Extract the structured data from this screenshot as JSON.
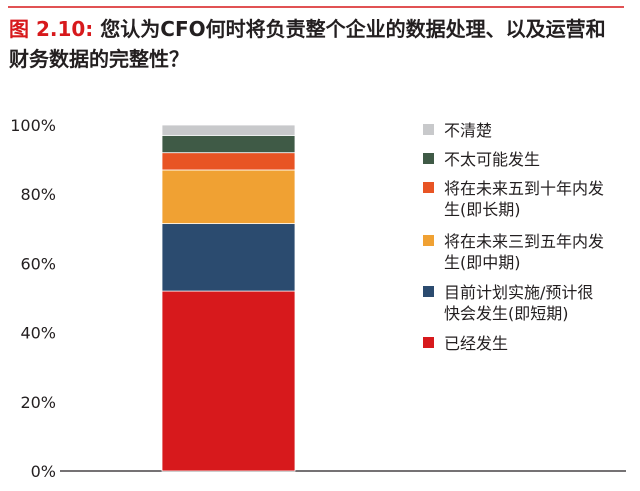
{
  "figure": {
    "label": "图 2.10:",
    "title": "您认为CFO何时将负责整个企业的数据处理、以及运营和财务数据的完整性？"
  },
  "chart_data": {
    "type": "bar",
    "stacked": true,
    "categories": [
      ""
    ],
    "ylim": [
      0,
      100
    ],
    "yticks": [
      "0%",
      "20%",
      "40%",
      "60%",
      "80%",
      "100%"
    ],
    "grid": false,
    "legend_position": "right",
    "series": [
      {
        "name": "已经发生",
        "lines": [
          "已经发生"
        ],
        "color": "#d7191c",
        "values": [
          52
        ]
      },
      {
        "name": "目前计划实施/预计很快会发生(即短期)",
        "lines": [
          "目前计划实施/预计很",
          "快会发生(即短期)"
        ],
        "color": "#2b4b6f",
        "values": [
          19.5
        ]
      },
      {
        "name": "将在未来三到五年内发生(即中期)",
        "lines": [
          "将在未来三到五年内发",
          "生(即中期)"
        ],
        "color": "#f0a133",
        "values": [
          15.5
        ]
      },
      {
        "name": "将在未来五到十年内发生(即长期)",
        "lines": [
          "将在未来五到十年内发",
          "生(即长期)"
        ],
        "color": "#e85424",
        "values": [
          5
        ]
      },
      {
        "name": "不太可能发生",
        "lines": [
          "不太可能发生"
        ],
        "color": "#3f5a46",
        "values": [
          5
        ]
      },
      {
        "name": "不清楚",
        "lines": [
          "不清楚"
        ],
        "color": "#c8c9cb",
        "values": [
          3
        ]
      }
    ]
  }
}
